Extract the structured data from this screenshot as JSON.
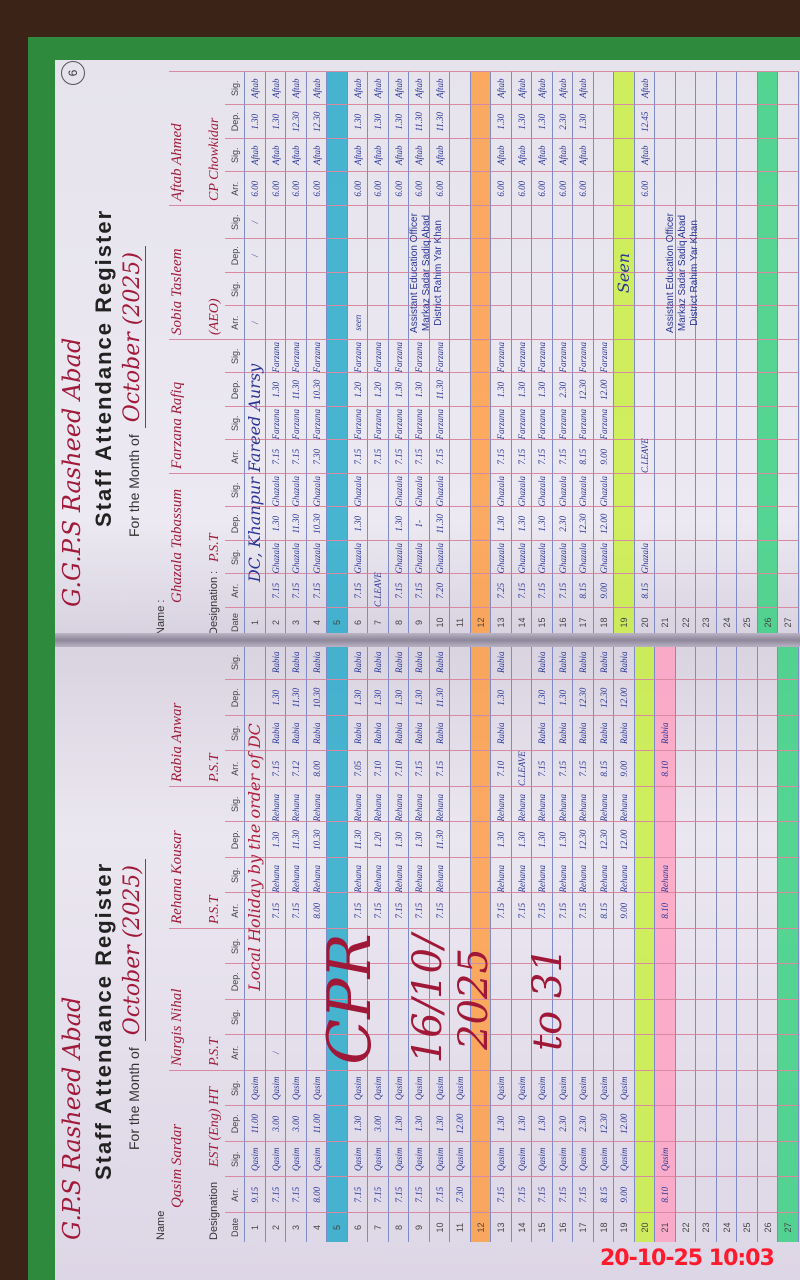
{
  "colors": {
    "ink_blue": "#2a3596",
    "ink_red": "#a11a3a",
    "grid_red": "#d98aa2",
    "grid_blue": "#7d8cc9",
    "cover_green": "#2e8a3c",
    "timestamp_red": "#ff1a2e"
  },
  "timestamp": "20-10-25 10:03",
  "pages": [
    {
      "school": "G.P.S Rasheed Abad",
      "title": "Staff Attendance Register",
      "month_prefix": "For the Month of",
      "month_value": "October (2025)",
      "name_label": "Name",
      "designation_label": "Designation",
      "headers": {
        "date": "Date",
        "arr": "Arr.",
        "sig": "Sig.",
        "dep": "Dep."
      },
      "staff": [
        {
          "name": "Qasim Sardar",
          "designation": "EST (Eng) HT"
        },
        {
          "name": "Nargis Nihal",
          "designation": "P.S.T"
        },
        {
          "name": "Rehana Kousar",
          "designation": "P.S.T"
        },
        {
          "name": "Rabia Anwar",
          "designation": "P.S.T"
        }
      ],
      "rows": [
        {
          "date": "1",
          "cells": [
            "9.15",
            "Qasim",
            "11.00",
            "Qasim",
            "",
            "",
            "",
            "",
            "",
            "",
            "",
            "",
            "",
            "",
            "",
            ""
          ],
          "note": "Local Holiday by the order of DC",
          "note_staff": [
            1,
            3
          ]
        },
        {
          "date": "2",
          "cells": [
            "7.15",
            "Qasim",
            "3.00",
            "Qasim",
            "/",
            "",
            "",
            "",
            "7.15",
            "Rehana",
            "1.30",
            "Rehana",
            "7.15",
            "Rabia",
            "1.30",
            "Rabia"
          ]
        },
        {
          "date": "3",
          "cells": [
            "7.15",
            "Qasim",
            "3.00",
            "Qasim",
            "",
            "",
            "",
            "",
            "7.15",
            "Rehana",
            "11.30",
            "Rehana",
            "7.12",
            "Rabia",
            "11.30",
            "Rabia"
          ]
        },
        {
          "date": "4",
          "cells": [
            "8.00",
            "Qasim",
            "11.00",
            "Qasim",
            "",
            "",
            "",
            "",
            "8.00",
            "Rehana",
            "10.30",
            "Rehana",
            "8.00",
            "Rabia",
            "10.30",
            "Rabia"
          ]
        },
        {
          "date": "5",
          "cells": []
        },
        {
          "date": "6",
          "cells": [
            "7.15",
            "Qasim",
            "1.30",
            "Qasim",
            "",
            "",
            "",
            "",
            "7.15",
            "Rehana",
            "11.30",
            "Rehana",
            "7.05",
            "Rabia",
            "1.30",
            "Rabia"
          ]
        },
        {
          "date": "7",
          "cells": [
            "7.15",
            "Qasim",
            "3.00",
            "Qasim",
            "",
            "",
            "",
            "",
            "7.15",
            "Rehana",
            "1.20",
            "Rehana",
            "7.10",
            "Rabia",
            "1.30",
            "Rabia"
          ]
        },
        {
          "date": "8",
          "cells": [
            "7.15",
            "Qasim",
            "1.30",
            "Qasim",
            "",
            "",
            "",
            "",
            "7.15",
            "Rehana",
            "1.30",
            "Rehana",
            "7.10",
            "Rabia",
            "1.30",
            "Rabia"
          ]
        },
        {
          "date": "9",
          "cells": [
            "7.15",
            "Qasim",
            "1.30",
            "Qasim",
            "",
            "",
            "",
            "",
            "7.15",
            "Rehana",
            "1.30",
            "Rehana",
            "7.15",
            "Rabia",
            "1.30",
            "Rabia"
          ]
        },
        {
          "date": "10",
          "cells": [
            "7.15",
            "Qasim",
            "1.30",
            "Qasim",
            "",
            "",
            "",
            "",
            "7.15",
            "Rehana",
            "11.30",
            "Rehana",
            "7.15",
            "Rabia",
            "11.30",
            "Rabia"
          ]
        },
        {
          "date": "11",
          "cells": [
            "7.30",
            "Qasim",
            "12.00",
            "Qasim",
            "",
            "",
            "",
            "",
            "",
            "",
            "",
            "",
            "",
            "",
            "",
            ""
          ]
        },
        {
          "date": "12",
          "cells": []
        },
        {
          "date": "13",
          "cells": [
            "7.15",
            "Qasim",
            "1.30",
            "Qasim",
            "",
            "",
            "",
            "",
            "7.15",
            "Rehana",
            "1.30",
            "Rehana",
            "7.10",
            "Rabia",
            "1.30",
            "Rabia"
          ]
        },
        {
          "date": "14",
          "cells": [
            "7.15",
            "Qasim",
            "1.30",
            "Qasim",
            "",
            "",
            "",
            "",
            "7.15",
            "Rehana",
            "1.30",
            "Rehana",
            "C.LEAVE",
            "",
            "",
            ""
          ]
        },
        {
          "date": "15",
          "cells": [
            "7.15",
            "Qasim",
            "1.30",
            "Qasim",
            "",
            "",
            "",
            "",
            "7.15",
            "Rehana",
            "1.30",
            "Rehana",
            "7.15",
            "Rabia",
            "1.30",
            "Rabia"
          ]
        },
        {
          "date": "16",
          "cells": [
            "7.15",
            "Qasim",
            "2.30",
            "Qasim",
            "",
            "",
            "",
            "",
            "7.15",
            "Rehana",
            "1.30",
            "Rehana",
            "7.15",
            "Rabia",
            "1.30",
            "Rabia"
          ]
        },
        {
          "date": "17",
          "cells": [
            "7.15",
            "Qasim",
            "2.30",
            "Qasim",
            "",
            "",
            "",
            "",
            "7.15",
            "Rehana",
            "12.30",
            "Rehana",
            "7.15",
            "Rabia",
            "12.30",
            "Rabia"
          ]
        },
        {
          "date": "18",
          "cells": [
            "8.15",
            "Qasim",
            "12.30",
            "Qasim",
            "",
            "",
            "",
            "",
            "8.15",
            "Rehana",
            "12.30",
            "Rehana",
            "8.15",
            "Rabia",
            "12.30",
            "Rabia"
          ]
        },
        {
          "date": "19",
          "cells": [
            "9.00",
            "Qasim",
            "12.00",
            "Qasim",
            "",
            "",
            "",
            "",
            "9.00",
            "Rehana",
            "12.00",
            "Rehana",
            "9.00",
            "Rabia",
            "12.00",
            "Rabia"
          ]
        },
        {
          "date": "20",
          "cells": []
        },
        {
          "date": "21",
          "cells": [
            "8.10",
            "Qasim",
            "",
            "",
            "",
            "",
            "",
            "",
            "8.10",
            "Rehana",
            "",
            "",
            "8.10",
            "Rabia",
            "",
            ""
          ]
        },
        {
          "date": "22",
          "cells": []
        },
        {
          "date": "23",
          "cells": []
        },
        {
          "date": "24",
          "cells": []
        },
        {
          "date": "25",
          "cells": []
        },
        {
          "date": "26",
          "cells": []
        },
        {
          "date": "27",
          "cells": []
        }
      ],
      "highlights": [
        {
          "date": "5",
          "color": "#1ea7c8"
        },
        {
          "date": "12",
          "color": "#ff9a3c"
        },
        {
          "date": "20",
          "color": "#c8f03a"
        },
        {
          "date": "21",
          "color": "#ff9fc0"
        },
        {
          "date": "27",
          "color": "#2fd07a"
        }
      ],
      "annotations": [
        "CPR",
        "16/10/2025",
        "to 31"
      ]
    },
    {
      "school": "G.G.P.S Rasheed Abad",
      "page_number": "6",
      "title": "Staff Attendance Register",
      "month_prefix": "For the Month of",
      "month_value": "October (2025)",
      "name_label": "Name :",
      "designation_label": "Designation :",
      "headers": {
        "date": "Date",
        "arr": "Arr.",
        "sig": "Sig.",
        "dep": "Dep."
      },
      "staff": [
        {
          "name": "Ghazala Tabassum",
          "designation": "P.S.T"
        },
        {
          "name": "Farzana Rafiq",
          "designation": ""
        },
        {
          "name": "Sobia Tasleem",
          "designation": "(AEO)"
        },
        {
          "name": "Aftab Ahmed",
          "designation": "CP Chowkidar"
        }
      ],
      "rows": [
        {
          "date": "1",
          "cells": [
            "",
            "",
            "",
            "",
            "",
            "",
            "",
            "",
            "/",
            "",
            "/",
            "/",
            "6.00",
            "Aftab",
            "1.30",
            "Aftab"
          ],
          "note": "DC, Khanpur Fareed Aursy",
          "note_staff": [
            0,
            1
          ]
        },
        {
          "date": "2",
          "cells": [
            "7.15",
            "Ghazala",
            "1.30",
            "Ghazala",
            "7.15",
            "Farzana",
            "1.30",
            "Farzana",
            "",
            "",
            "",
            "",
            "6.00",
            "Aftab",
            "1.30",
            "Aftab"
          ]
        },
        {
          "date": "3",
          "cells": [
            "7.15",
            "Ghazala",
            "11.30",
            "Ghazala",
            "7.15",
            "Farzana",
            "11.30",
            "Farzana",
            "",
            "",
            "",
            "",
            "6.00",
            "Aftab",
            "12.30",
            "Aftab"
          ]
        },
        {
          "date": "4",
          "cells": [
            "7.15",
            "Ghazala",
            "10.30",
            "Ghazala",
            "7.30",
            "Farzana",
            "10.30",
            "Farzana",
            "",
            "",
            "",
            "",
            "6.00",
            "Aftab",
            "12.30",
            "Aftab"
          ]
        },
        {
          "date": "5",
          "cells": []
        },
        {
          "date": "6",
          "cells": [
            "7.15",
            "Ghazala",
            "1.30",
            "Ghazala",
            "7.15",
            "Farzana",
            "1.20",
            "Farzana",
            "seen",
            "",
            "",
            "",
            "6.00",
            "Aftab",
            "1.30",
            "Aftab"
          ]
        },
        {
          "date": "7",
          "cells": [
            "C.LEAVE",
            "",
            "",
            "",
            "7.15",
            "Farzana",
            "1.20",
            "Farzana",
            "",
            "",
            "",
            "",
            "6.00",
            "Aftab",
            "1.30",
            "Aftab"
          ]
        },
        {
          "date": "8",
          "cells": [
            "7.15",
            "Ghazala",
            "1.30",
            "Ghazala",
            "7.15",
            "Farzana",
            "1.30",
            "Farzana",
            "",
            "",
            "",
            "",
            "6.00",
            "Aftab",
            "1.30",
            "Aftab"
          ]
        },
        {
          "date": "9",
          "cells": [
            "7.15",
            "Ghazala",
            "1-",
            "Ghazala",
            "7.15",
            "Farzana",
            "1.30",
            "Farzana",
            "",
            "",
            "",
            "",
            "6.00",
            "Aftab",
            "11.30",
            "Aftab"
          ]
        },
        {
          "date": "10",
          "cells": [
            "7.20",
            "Ghazala",
            "11.30",
            "Ghazala",
            "7.15",
            "Farzana",
            "11.30",
            "Farzana",
            "",
            "",
            "",
            "",
            "6.00",
            "Aftab",
            "11.30",
            "Aftab"
          ]
        },
        {
          "date": "11",
          "cells": []
        },
        {
          "date": "12",
          "cells": []
        },
        {
          "date": "13",
          "cells": [
            "7.25",
            "Ghazala",
            "1.30",
            "Ghazala",
            "7.15",
            "Farzana",
            "1.30",
            "Farzana",
            "",
            "",
            "",
            "",
            "6.00",
            "Aftab",
            "1.30",
            "Aftab"
          ]
        },
        {
          "date": "14",
          "cells": [
            "7.15",
            "Ghazala",
            "1.30",
            "Ghazala",
            "7.15",
            "Farzana",
            "1.30",
            "Farzana",
            "",
            "",
            "",
            "",
            "6.00",
            "Aftab",
            "1.30",
            "Aftab"
          ]
        },
        {
          "date": "15",
          "cells": [
            "7.15",
            "Ghazala",
            "1.30",
            "Ghazala",
            "7.15",
            "Farzana",
            "1.30",
            "Farzana",
            "",
            "",
            "",
            "",
            "6.00",
            "Aftab",
            "1.30",
            "Aftab"
          ]
        },
        {
          "date": "16",
          "cells": [
            "7.15",
            "Ghazala",
            "2.30",
            "Ghazala",
            "7.15",
            "Farzana",
            "2.30",
            "Farzana",
            "",
            "",
            "",
            "",
            "6.00",
            "Aftab",
            "2.30",
            "Aftab"
          ]
        },
        {
          "date": "17",
          "cells": [
            "8.15",
            "Ghazala",
            "12.30",
            "Ghazala",
            "8.15",
            "Farzana",
            "12.30",
            "Farzana",
            "",
            "",
            "",
            "",
            "6.00",
            "Aftab",
            "1.30",
            "Aftab"
          ]
        },
        {
          "date": "18",
          "cells": [
            "9.00",
            "Ghazala",
            "12.00",
            "Ghazala",
            "9.00",
            "Farzana",
            "12.00",
            "Farzana",
            "",
            "",
            "",
            "",
            "",
            "",
            "",
            ""
          ]
        },
        {
          "date": "19",
          "cells": []
        },
        {
          "date": "20",
          "cells": [
            "8.15",
            "Ghazala",
            "",
            "",
            "C.LEAVE",
            "",
            "",
            "",
            "",
            "",
            "",
            "",
            "6.00",
            "Aftab",
            "12.45",
            "Aftab"
          ]
        },
        {
          "date": "21",
          "cells": []
        },
        {
          "date": "22",
          "cells": []
        },
        {
          "date": "23",
          "cells": []
        },
        {
          "date": "24",
          "cells": []
        },
        {
          "date": "25",
          "cells": []
        },
        {
          "date": "26",
          "cells": []
        },
        {
          "date": "27",
          "cells": []
        }
      ],
      "highlights": [
        {
          "date": "5",
          "color": "#1ea7c8"
        },
        {
          "date": "12",
          "color": "#ff9a3c"
        },
        {
          "date": "19",
          "color": "#c8f03a"
        },
        {
          "date": "26",
          "color": "#2fd07a"
        }
      ],
      "stamp": {
        "seen": "Seen",
        "lines": [
          "Assistant Education Officer",
          "Markaz Sadar Sadiq Abad",
          "District Rahim Yar Khan"
        ]
      }
    }
  ]
}
